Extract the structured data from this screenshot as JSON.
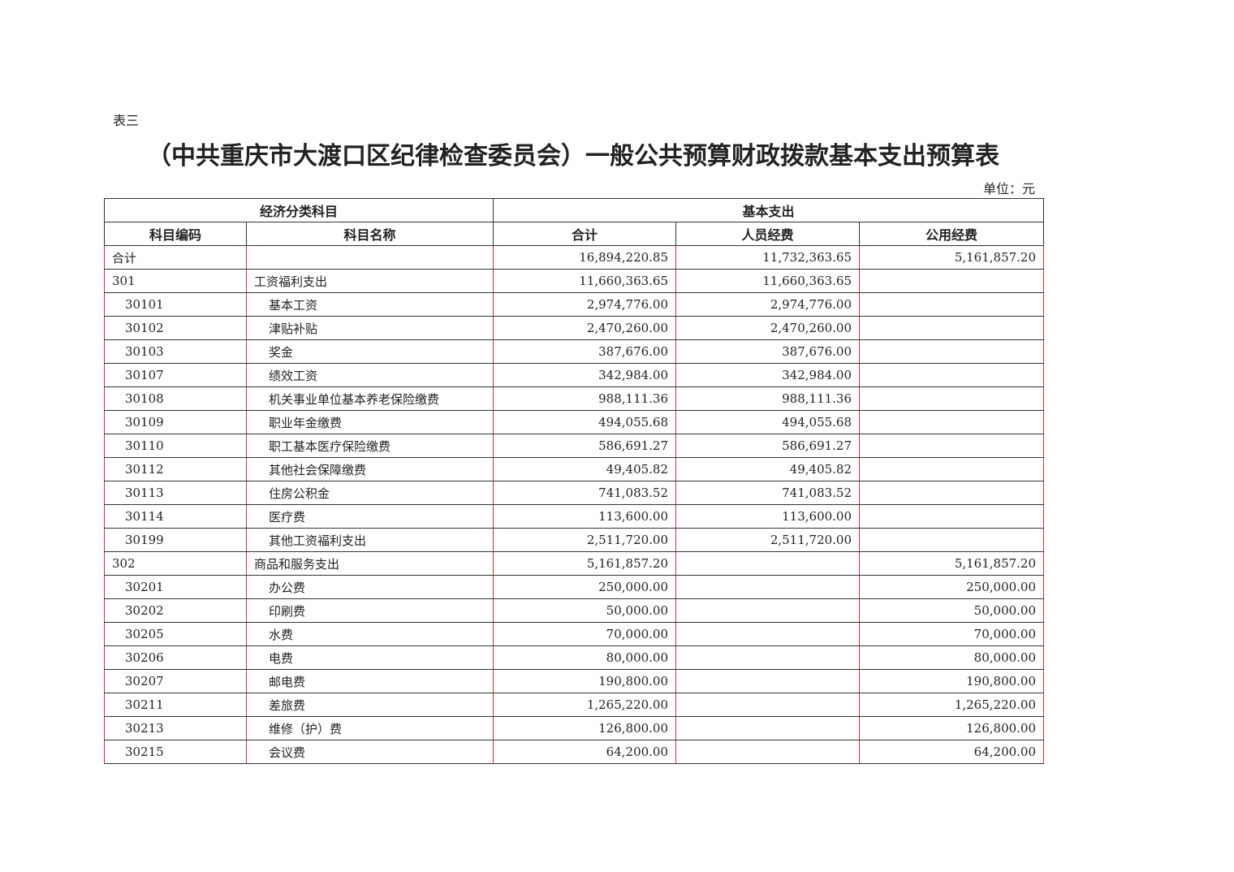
{
  "label": "表三",
  "title": "（中共重庆市大渡口区纪律检查委员会）一般公共预算财政拨款基本支出预算表",
  "unit": "单位：元",
  "header": {
    "group1": "经济分类科目",
    "group2": "基本支出",
    "cols": [
      "科目编码",
      "科目名称",
      "合计",
      "人员经费",
      "公用经费"
    ]
  },
  "rows": [
    {
      "code": "合计",
      "name": "",
      "total": "16,894,220.85",
      "personnel": "11,732,363.65",
      "public": "5,161,857.20",
      "sub": false
    },
    {
      "code": "301",
      "name": "工资福利支出",
      "total": "11,660,363.65",
      "personnel": "11,660,363.65",
      "public": "",
      "sub": false
    },
    {
      "code": "30101",
      "name": "基本工资",
      "total": "2,974,776.00",
      "personnel": "2,974,776.00",
      "public": "",
      "sub": true
    },
    {
      "code": "30102",
      "name": "津贴补贴",
      "total": "2,470,260.00",
      "personnel": "2,470,260.00",
      "public": "",
      "sub": true
    },
    {
      "code": "30103",
      "name": "奖金",
      "total": "387,676.00",
      "personnel": "387,676.00",
      "public": "",
      "sub": true
    },
    {
      "code": "30107",
      "name": "绩效工资",
      "total": "342,984.00",
      "personnel": "342,984.00",
      "public": "",
      "sub": true
    },
    {
      "code": "30108",
      "name": "机关事业单位基本养老保险缴费",
      "total": "988,111.36",
      "personnel": "988,111.36",
      "public": "",
      "sub": true
    },
    {
      "code": "30109",
      "name": "职业年金缴费",
      "total": "494,055.68",
      "personnel": "494,055.68",
      "public": "",
      "sub": true
    },
    {
      "code": "30110",
      "name": "职工基本医疗保险缴费",
      "total": "586,691.27",
      "personnel": "586,691.27",
      "public": "",
      "sub": true
    },
    {
      "code": "30112",
      "name": "其他社会保障缴费",
      "total": "49,405.82",
      "personnel": "49,405.82",
      "public": "",
      "sub": true
    },
    {
      "code": "30113",
      "name": "住房公积金",
      "total": "741,083.52",
      "personnel": "741,083.52",
      "public": "",
      "sub": true
    },
    {
      "code": "30114",
      "name": "医疗费",
      "total": "113,600.00",
      "personnel": "113,600.00",
      "public": "",
      "sub": true
    },
    {
      "code": "30199",
      "name": "其他工资福利支出",
      "total": "2,511,720.00",
      "personnel": "2,511,720.00",
      "public": "",
      "sub": true
    },
    {
      "code": "302",
      "name": "商品和服务支出",
      "total": "5,161,857.20",
      "personnel": "",
      "public": "5,161,857.20",
      "sub": false
    },
    {
      "code": "30201",
      "name": "办公费",
      "total": "250,000.00",
      "personnel": "",
      "public": "250,000.00",
      "sub": true
    },
    {
      "code": "30202",
      "name": "印刷费",
      "total": "50,000.00",
      "personnel": "",
      "public": "50,000.00",
      "sub": true
    },
    {
      "code": "30205",
      "name": "水费",
      "total": "70,000.00",
      "personnel": "",
      "public": "70,000.00",
      "sub": true
    },
    {
      "code": "30206",
      "name": "电费",
      "total": "80,000.00",
      "personnel": "",
      "public": "80,000.00",
      "sub": true
    },
    {
      "code": "30207",
      "name": "邮电费",
      "total": "190,800.00",
      "personnel": "",
      "public": "190,800.00",
      "sub": true
    },
    {
      "code": "30211",
      "name": "差旅费",
      "total": "1,265,220.00",
      "personnel": "",
      "public": "1,265,220.00",
      "sub": true
    },
    {
      "code": "30213",
      "name": "维修（护）费",
      "total": "126,800.00",
      "personnel": "",
      "public": "126,800.00",
      "sub": true
    },
    {
      "code": "30215",
      "name": "会议费",
      "total": "64,200.00",
      "personnel": "",
      "public": "64,200.00",
      "sub": true
    }
  ]
}
